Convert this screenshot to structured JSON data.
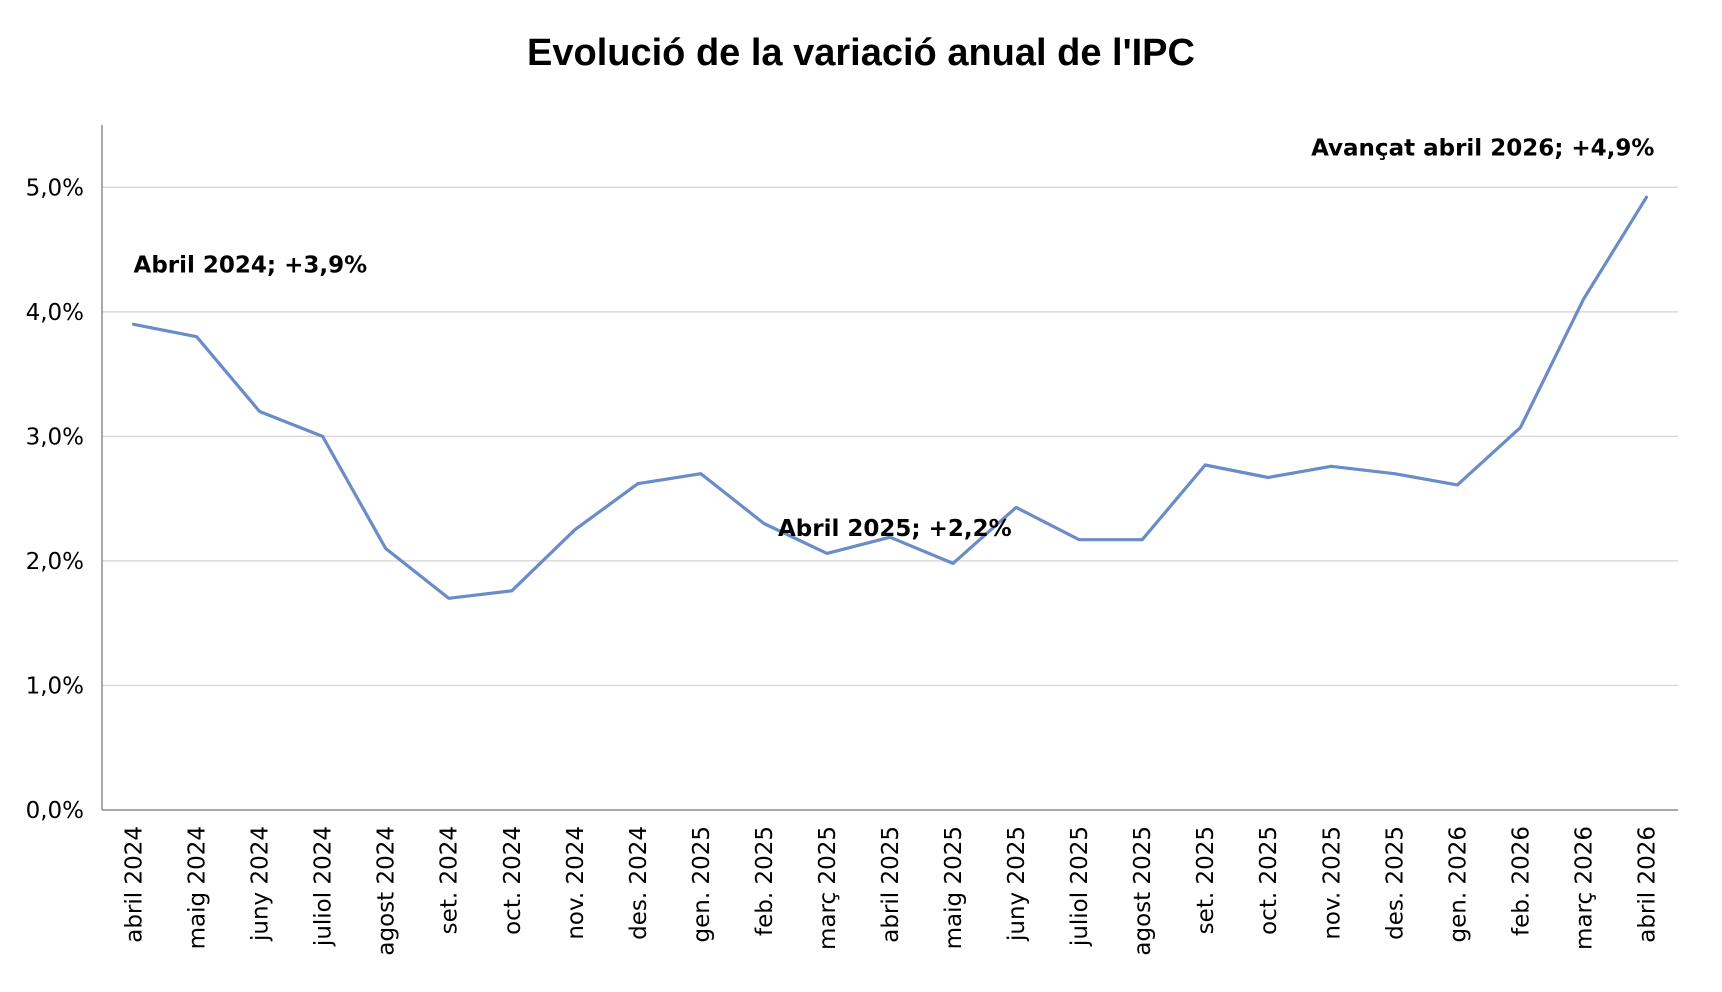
{
  "chart_data": {
    "type": "line",
    "title": "Evolució de la variació anual de l'IPC",
    "xlabel": "",
    "ylabel": "",
    "ylim": [
      0,
      5.5
    ],
    "yticks": [
      0,
      1,
      2,
      3,
      4,
      5
    ],
    "ytick_labels": [
      "0,0%",
      "1,0%",
      "2,0%",
      "3,0%",
      "4,0%",
      "5,0%"
    ],
    "grid": true,
    "categories": [
      "abril 2024",
      "maig 2024",
      "juny 2024",
      "juliol 2024",
      "agost 2024",
      "set. 2024",
      "oct. 2024",
      "nov. 2024",
      "des. 2024",
      "gen. 2025",
      "feb. 2025",
      "març 2025",
      "abril 2025",
      "maig 2025",
      "juny 2025",
      "juliol 2025",
      "agost 2025",
      "set. 2025",
      "oct. 2025",
      "nov. 2025",
      "des. 2025",
      "gen. 2026",
      "feb. 2026",
      "març 2026",
      "abril 2026"
    ],
    "series": [
      {
        "color": "#6a8cc7",
        "values": [
          3.9,
          3.8,
          3.2,
          3.0,
          2.1,
          1.7,
          1.76,
          2.25,
          2.62,
          2.7,
          2.3,
          2.06,
          2.19,
          1.98,
          2.43,
          2.17,
          2.17,
          2.77,
          2.67,
          2.76,
          2.7,
          2.61,
          3.07,
          4.1,
          4.92
        ]
      }
    ],
    "annotations": [
      {
        "text": "Abril 2024; +3,9%",
        "index": 0,
        "value": 3.9
      },
      {
        "text": "Abril 2025; +2,2%",
        "index": 12,
        "value": 2.2
      },
      {
        "text": "Avançat abril 2026; +4,9%",
        "index": 24,
        "value": 4.9
      }
    ]
  }
}
